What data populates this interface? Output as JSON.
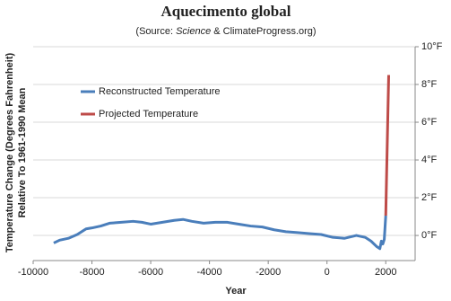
{
  "chart_data": {
    "type": "line",
    "title": "Aquecimento global",
    "subtitle_parts": [
      "(Source: ",
      "Science",
      " & ClimateProgress.org)"
    ],
    "x_label": "Year",
    "y_label_lines": [
      "Temperature Change (Degrees Fahrenheit)",
      "Relative To 1961-1990 Mean"
    ],
    "xlim": [
      -10000,
      3000
    ],
    "xticks": [
      -10000,
      -8000,
      -6000,
      -4000,
      -2000,
      0,
      2000
    ],
    "ylim": [
      -1.33,
      10
    ],
    "yticks": [
      {
        "value": 0,
        "label": "0°F"
      },
      {
        "value": 2,
        "label": "2°F"
      },
      {
        "value": 4,
        "label": "4°F"
      },
      {
        "value": 6,
        "label": "6°F"
      },
      {
        "value": 8,
        "label": "8°F"
      },
      {
        "value": 10,
        "label": "10°F"
      }
    ],
    "grid": true,
    "legend": "upper-left",
    "series": [
      {
        "name": "Reconstructed Temperature",
        "color": "#4a7ebb",
        "x": [
          -9300,
          -9100,
          -8800,
          -8500,
          -8200,
          -8000,
          -7700,
          -7400,
          -7000,
          -6600,
          -6300,
          -6000,
          -5600,
          -5200,
          -4900,
          -4600,
          -4200,
          -3800,
          -3400,
          -3000,
          -2600,
          -2200,
          -1800,
          -1400,
          -1000,
          -600,
          -200,
          200,
          600,
          1000,
          1300,
          1500,
          1700,
          1800,
          1850,
          1900,
          1950,
          2000
        ],
        "values": [
          -0.4,
          -0.25,
          -0.15,
          0.05,
          0.35,
          0.4,
          0.5,
          0.65,
          0.7,
          0.75,
          0.7,
          0.6,
          0.7,
          0.8,
          0.85,
          0.75,
          0.65,
          0.7,
          0.7,
          0.6,
          0.5,
          0.45,
          0.3,
          0.2,
          0.15,
          0.1,
          0.05,
          -0.1,
          -0.15,
          0,
          -0.1,
          -0.3,
          -0.6,
          -0.7,
          -0.3,
          -0.45,
          -0.2,
          1.05
        ]
      },
      {
        "name": "Projected Temperature",
        "color": "#be4b48",
        "x": [
          2000,
          2100
        ],
        "values": [
          1.05,
          8.5
        ]
      }
    ]
  }
}
